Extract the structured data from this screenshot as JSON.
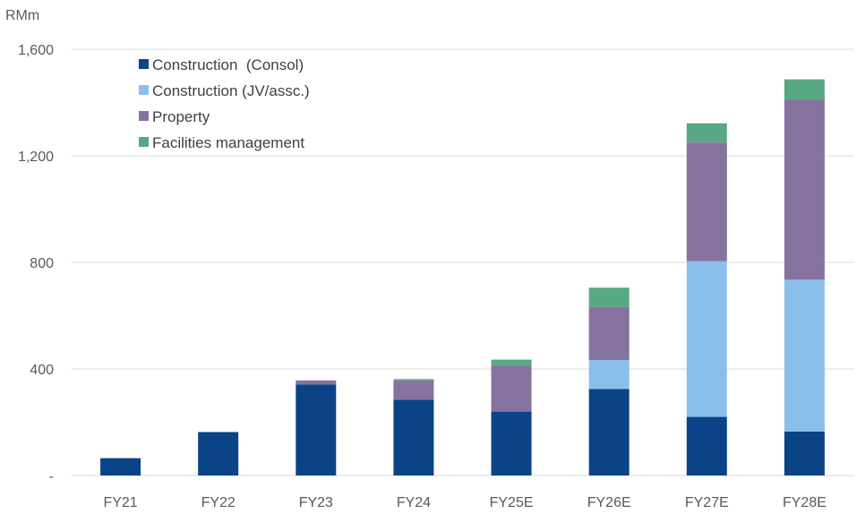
{
  "chart_data": {
    "type": "bar",
    "stacked": true,
    "unit_label": "RMm",
    "categories": [
      "FY21",
      "FY22",
      "FY23",
      "FY24",
      "FY25E",
      "FY26E",
      "FY27E",
      "FY28E"
    ],
    "series": [
      {
        "name": "Construction  (Consol)",
        "color": "#0b4387",
        "values": [
          65,
          163,
          342,
          285,
          240,
          325,
          220,
          165
        ]
      },
      {
        "name": "Construction (JV/assc.)",
        "color": "#8bbfeb",
        "values": [
          0,
          0,
          0,
          0,
          0,
          108,
          585,
          570
        ]
      },
      {
        "name": "Property",
        "color": "#86729f",
        "values": [
          0,
          0,
          15,
          72,
          173,
          200,
          445,
          675
        ]
      },
      {
        "name": "Facilities management",
        "color": "#58a883",
        "values": [
          0,
          0,
          0,
          5,
          22,
          72,
          72,
          77
        ]
      }
    ],
    "y_ticks": [
      {
        "value": 0,
        "label": "-"
      },
      {
        "value": 400,
        "label": "400"
      },
      {
        "value": 800,
        "label": "800"
      },
      {
        "value": 1200,
        "label": "1,200"
      },
      {
        "value": 1600,
        "label": "1,600"
      }
    ],
    "ylim": [
      0,
      1600
    ],
    "grid": true,
    "legend_position": "top-left"
  }
}
